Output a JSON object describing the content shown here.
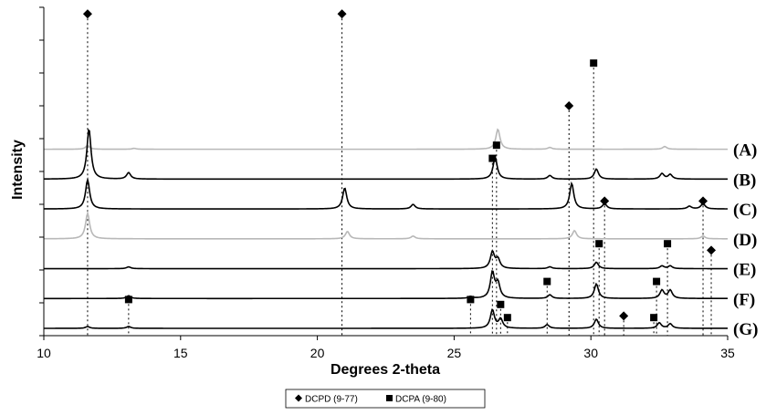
{
  "chart_data": {
    "type": "line",
    "title": "",
    "xlabel": "Degrees 2-theta",
    "ylabel": "Intensity",
    "xlim": [
      10,
      35
    ],
    "x_ticks": [
      10,
      15,
      20,
      25,
      30,
      35
    ],
    "x_tick_labels": [
      "10",
      "15",
      "20",
      "25",
      "30",
      "35"
    ],
    "y_ticks_count": 11,
    "grid": false,
    "legend_position": "bottom-center",
    "legend": [
      {
        "marker": "diamond",
        "label": "DCPD (9-77)"
      },
      {
        "marker": "square",
        "label": "DCPA (9-80)"
      }
    ],
    "series": [
      {
        "label": "(A)",
        "color": "#b8b8b8",
        "peaks": [
          [
            11.6,
            4
          ],
          [
            13.3,
            1
          ],
          [
            26.6,
            22
          ],
          [
            28.5,
            2
          ],
          [
            32.7,
            3
          ]
        ]
      },
      {
        "label": "(B)",
        "color": "#000000",
        "peaks": [
          [
            11.65,
            55
          ],
          [
            13.1,
            7
          ],
          [
            26.5,
            24
          ],
          [
            28.5,
            4
          ],
          [
            30.2,
            11
          ],
          [
            32.6,
            6
          ],
          [
            32.9,
            5
          ]
        ]
      },
      {
        "label": "(C)",
        "color": "#000000",
        "peaks": [
          [
            11.6,
            32
          ],
          [
            21.0,
            23
          ],
          [
            23.5,
            5
          ],
          [
            29.3,
            28
          ],
          [
            30.5,
            6
          ],
          [
            33.6,
            3
          ],
          [
            34.1,
            6
          ]
        ]
      },
      {
        "label": "(D)",
        "color": "#b8b8b8",
        "peaks": [
          [
            11.6,
            28
          ],
          [
            21.1,
            8
          ],
          [
            23.5,
            3
          ],
          [
            29.4,
            9
          ],
          [
            34.1,
            3
          ]
        ]
      },
      {
        "label": "(E)",
        "color": "#000000",
        "peaks": [
          [
            13.1,
            2
          ],
          [
            26.4,
            18
          ],
          [
            26.6,
            10
          ],
          [
            28.5,
            2
          ],
          [
            30.2,
            7
          ],
          [
            32.6,
            3
          ],
          [
            32.9,
            3
          ]
        ]
      },
      {
        "label": "(F)",
        "color": "#000000",
        "peaks": [
          [
            13.1,
            3
          ],
          [
            25.6,
            2
          ],
          [
            26.4,
            28
          ],
          [
            26.6,
            16
          ],
          [
            28.5,
            4
          ],
          [
            30.2,
            16
          ],
          [
            32.6,
            9
          ],
          [
            32.9,
            9
          ]
        ]
      },
      {
        "label": "(G)",
        "color": "#000000",
        "peaks": [
          [
            11.6,
            2
          ],
          [
            13.1,
            2
          ],
          [
            26.4,
            20
          ],
          [
            26.7,
            10
          ],
          [
            28.4,
            4
          ],
          [
            30.2,
            10
          ],
          [
            32.5,
            6
          ],
          [
            32.9,
            5
          ]
        ]
      }
    ],
    "reference_lines": [
      {
        "x": 11.6,
        "marker": "diamond",
        "level": 0.98
      },
      {
        "x": 20.9,
        "marker": "diamond",
        "level": 0.98
      },
      {
        "x": 29.2,
        "marker": "diamond",
        "level": 0.7
      },
      {
        "x": 30.1,
        "marker": "square",
        "level": 0.83
      },
      {
        "x": 26.55,
        "marker": "square",
        "level": 0.58
      },
      {
        "x": 26.4,
        "marker": "square",
        "level": 0.54
      },
      {
        "x": 30.5,
        "marker": "diamond",
        "level": 0.41
      },
      {
        "x": 34.1,
        "marker": "diamond",
        "level": 0.41
      },
      {
        "x": 30.3,
        "marker": "square",
        "level": 0.28
      },
      {
        "x": 32.8,
        "marker": "square",
        "level": 0.28
      },
      {
        "x": 34.4,
        "marker": "diamond",
        "level": 0.26
      },
      {
        "x": 28.4,
        "marker": "square",
        "level": 0.165
      },
      {
        "x": 32.4,
        "marker": "square",
        "level": 0.165
      },
      {
        "x": 13.1,
        "marker": "square",
        "level": 0.11
      },
      {
        "x": 25.6,
        "marker": "square",
        "level": 0.11
      },
      {
        "x": 26.7,
        "marker": "square",
        "level": 0.095
      },
      {
        "x": 26.95,
        "marker": "square",
        "level": 0.055
      },
      {
        "x": 31.2,
        "marker": "diamond",
        "level": 0.06
      },
      {
        "x": 32.3,
        "marker": "square",
        "level": 0.055
      }
    ]
  }
}
